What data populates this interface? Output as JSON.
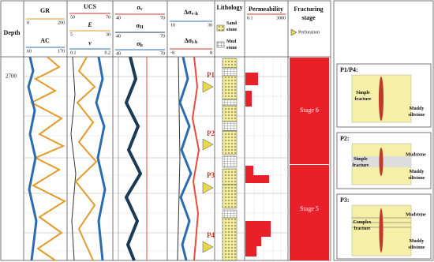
{
  "header": {
    "depth": "Depth",
    "depth_label": "2700"
  },
  "tracks": [
    {
      "curves": [
        {
          "name": "GR",
          "sub": null,
          "min": 0,
          "max": 200
        },
        {
          "name": "AC",
          "sub": null,
          "min": 60,
          "max": 170
        }
      ]
    },
    {
      "curves": [
        {
          "name": "UCS",
          "sub": null,
          "min": 50,
          "max": 70
        },
        {
          "name": "E",
          "sub": null,
          "min": 5,
          "max": 30
        },
        {
          "name": "v",
          "sub": null,
          "min": 0.1,
          "max": 0.2
        }
      ]
    },
    {
      "curves": [
        {
          "name": "σ",
          "sub": "v",
          "min": 40,
          "max": 70
        },
        {
          "name": "σ",
          "sub": "H",
          "min": 40,
          "max": 70
        },
        {
          "name": "σ",
          "sub": "h",
          "min": 40,
          "max": 70
        }
      ]
    },
    {
      "curves": [
        {
          "name": "Δσ",
          "sub": "v-h",
          "min": 10,
          "max": 30
        },
        {
          "name": "Δσ",
          "sub": "t-b",
          "min": -8,
          "max": 8
        }
      ]
    }
  ],
  "lithology": {
    "title": "Lithology",
    "legend": [
      {
        "lines": [
          "Sand",
          "stone"
        ]
      },
      {
        "lines": [
          "Mud",
          "stone"
        ]
      }
    ]
  },
  "permeability": {
    "title": "Permeability",
    "min": 0.1,
    "max": 3000
  },
  "fracturing": {
    "title": [
      "Fracturing",
      "stage"
    ],
    "perforation": "Perforation",
    "stages": [
      "Stage 6",
      "Stage 5"
    ]
  },
  "perforations": [
    "P1",
    "P2",
    "P3",
    "P4"
  ],
  "panels": [
    {
      "title": "P1/P4:",
      "labels": [
        {
          "lines": [
            "Simple",
            "fracture"
          ]
        },
        {
          "lines": [
            "Muddy",
            "siltstone"
          ]
        }
      ]
    },
    {
      "title": "P2:",
      "labels": [
        {
          "lines": [
            "Mudstone"
          ]
        },
        {
          "lines": [
            "Simple",
            "fracture"
          ]
        },
        {
          "lines": [
            "Muddy",
            "siltstone"
          ]
        }
      ]
    },
    {
      "title": "P3:",
      "labels": [
        {
          "lines": [
            "Mudstone"
          ]
        },
        {
          "lines": [
            "Complex",
            "fracture"
          ]
        },
        {
          "lines": [
            "Muddy",
            "siltstone"
          ]
        }
      ]
    }
  ]
}
